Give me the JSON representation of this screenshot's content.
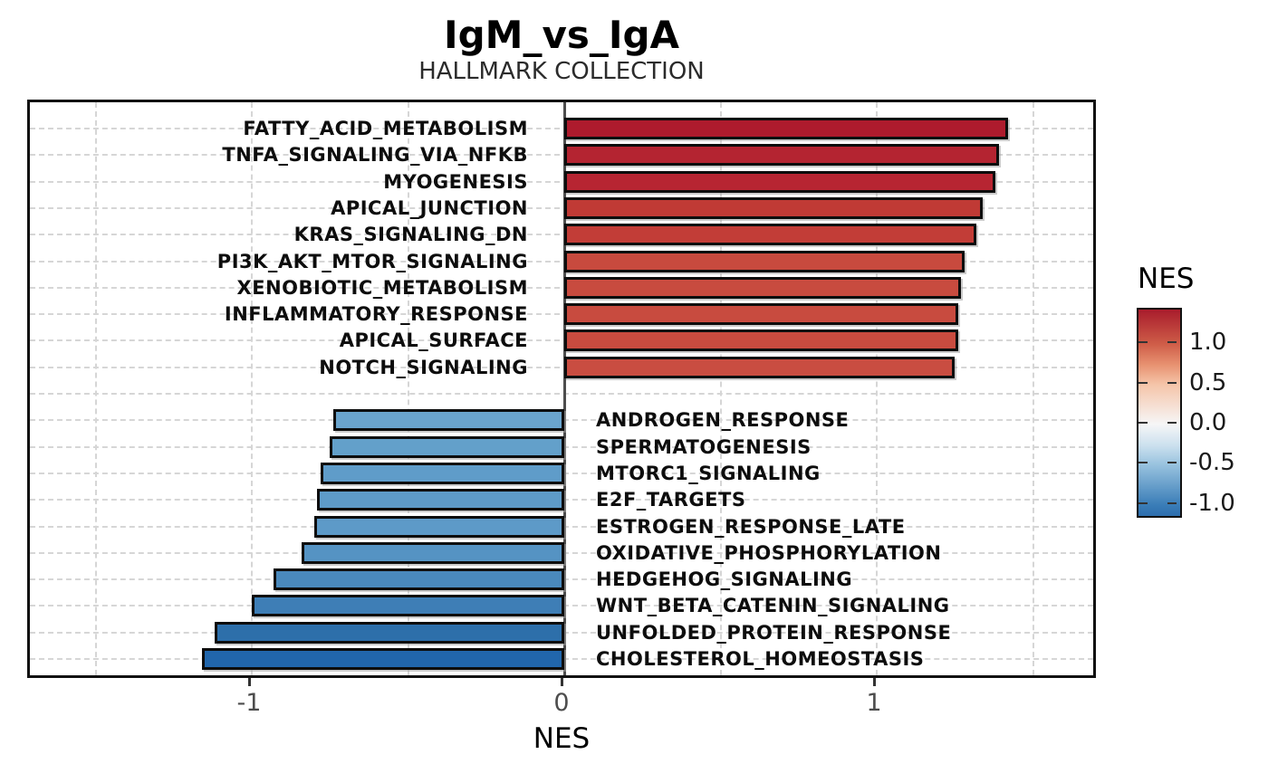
{
  "title": "IgM_vs_IgA",
  "subtitle": "HALLMARK COLLECTION",
  "chart_data": {
    "type": "bar",
    "orientation": "horizontal",
    "title": "IgM_vs_IgA",
    "subtitle": "HALLMARK COLLECTION",
    "xlabel": "NES",
    "xlim": [
      -1.71,
      1.71
    ],
    "x_ticks": [
      -1,
      0,
      1
    ],
    "x_tick_labels": [
      "-1",
      "0",
      "1"
    ],
    "grid_vertical_dashed_at": [
      -1.5,
      -1,
      -0.5,
      0.5,
      1,
      1.5
    ],
    "grid": "dashed",
    "group_gap_after_index": 9,
    "categories": [
      "FATTY_ACID_METABOLISM",
      "TNFA_SIGNALING_VIA_NFKB",
      "MYOGENESIS",
      "APICAL_JUNCTION",
      "KRAS_SIGNALING_DN",
      "PI3K_AKT_MTOR_SIGNALING",
      "XENOBIOTIC_METABOLISM",
      "INFLAMMATORY_RESPONSE",
      "APICAL_SURFACE",
      "NOTCH_SIGNALING",
      "ANDROGEN_RESPONSE",
      "SPERMATOGENESIS",
      "MTORC1_SIGNALING",
      "E2F_TARGETS",
      "ESTROGEN_RESPONSE_LATE",
      "OXIDATIVE_PHOSPHORYLATION",
      "HEDGEHOG_SIGNALING",
      "WNT_BETA_CATENIN_SIGNALING",
      "UNFOLDED_PROTEIN_RESPONSE",
      "CHOLESTEROL_HOMEOSTASIS"
    ],
    "values": [
      1.42,
      1.39,
      1.38,
      1.34,
      1.32,
      1.28,
      1.27,
      1.26,
      1.26,
      1.25,
      -0.74,
      -0.75,
      -0.78,
      -0.79,
      -0.8,
      -0.84,
      -0.93,
      -1.0,
      -1.12,
      -1.16
    ],
    "bar_colors": [
      "#AE1B2D",
      "#B42431",
      "#B72532",
      "#C03A35",
      "#C23D37",
      "#C84A3E",
      "#C84B3F",
      "#C84B3F",
      "#C84B3F",
      "#C94D41",
      "#6AA4CD",
      "#63A0CA",
      "#5F9CC9",
      "#5E9BC8",
      "#5D9AC8",
      "#5593C3",
      "#4A89BC",
      "#3E7EB6",
      "#2D6FAA",
      "#2166AC"
    ],
    "legend": {
      "title": "NES",
      "position": "right",
      "range": [
        -1.14,
        1.43
      ],
      "ticks": [
        1.0,
        0.5,
        0.0,
        -0.5,
        -1.0
      ],
      "tick_labels": [
        "1.0",
        "0.5",
        "0.0",
        "-0.5",
        "-1.0"
      ],
      "gradient_stops": [
        {
          "pos": 0,
          "color": "#A81C2C"
        },
        {
          "pos": 16.7,
          "color": "#CF5D48"
        },
        {
          "pos": 27,
          "color": "#E89372"
        },
        {
          "pos": 36.1,
          "color": "#F5C4A8"
        },
        {
          "pos": 55.6,
          "color": "#F6F6F7"
        },
        {
          "pos": 66,
          "color": "#CBE0EE"
        },
        {
          "pos": 75,
          "color": "#99C3DF"
        },
        {
          "pos": 94.4,
          "color": "#3B7EB8"
        },
        {
          "pos": 100,
          "color": "#2C6DAD"
        }
      ]
    },
    "colors": {
      "grid": "#d6d6d6",
      "zero_line": "#4d4d4d",
      "bar_outline": "#0d0d0d",
      "tick_label": "#4d4d4d"
    }
  }
}
